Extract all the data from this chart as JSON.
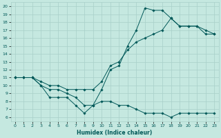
{
  "xlabel": "Humidex (Indice chaleur)",
  "bg_color": "#c5e8e0",
  "grid_color": "#a8cfc8",
  "line_color": "#005858",
  "xlim": [
    -0.5,
    23.5
  ],
  "ylim": [
    5.5,
    20.5
  ],
  "xticks": [
    0,
    1,
    2,
    3,
    4,
    5,
    6,
    7,
    8,
    9,
    10,
    11,
    12,
    13,
    14,
    15,
    16,
    17,
    18,
    19,
    20,
    21,
    22,
    23
  ],
  "yticks": [
    6,
    7,
    8,
    9,
    10,
    11,
    12,
    13,
    14,
    15,
    16,
    17,
    18,
    19,
    20
  ],
  "series": [
    {
      "x": [
        0,
        1,
        2,
        3,
        4,
        5,
        6,
        7,
        8,
        9,
        10,
        11,
        12,
        13,
        14,
        15,
        16,
        17,
        18,
        19,
        20,
        21,
        22,
        23
      ],
      "y": [
        11,
        11,
        11,
        10,
        9.5,
        9.5,
        9,
        8.5,
        7.5,
        7.5,
        8,
        8,
        7.5,
        7.5,
        7,
        6.5,
        6.5,
        6.5,
        6,
        6.5,
        6.5,
        6.5,
        6.5,
        6.5
      ]
    },
    {
      "x": [
        0,
        1,
        2,
        3,
        4,
        5,
        6,
        7,
        8,
        9,
        10,
        11,
        12,
        13,
        14,
        15,
        16,
        17,
        18,
        19,
        20,
        21,
        22,
        23
      ],
      "y": [
        11,
        11,
        11,
        10,
        8.5,
        8.5,
        8.5,
        7.5,
        6.5,
        7.5,
        9.5,
        12,
        12.5,
        15,
        17,
        19.8,
        19.5,
        19.5,
        18.5,
        17.5,
        17.5,
        17.5,
        17,
        16.5
      ]
    },
    {
      "x": [
        0,
        1,
        2,
        3,
        4,
        5,
        6,
        7,
        8,
        9,
        10,
        11,
        12,
        13,
        14,
        15,
        16,
        17,
        18,
        19,
        20,
        21,
        22,
        23
      ],
      "y": [
        11,
        11,
        11,
        10.5,
        10,
        10,
        9.5,
        9.5,
        9.5,
        9.5,
        10.5,
        12.5,
        13,
        14.5,
        15.5,
        16,
        16.5,
        17,
        18.5,
        17.5,
        17.5,
        17.5,
        16.5,
        16.5
      ]
    }
  ]
}
